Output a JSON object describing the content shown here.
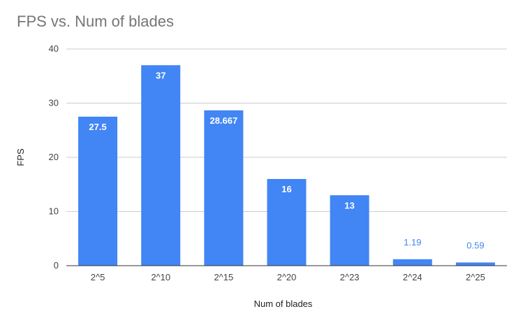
{
  "chart_data": {
    "type": "bar",
    "title": "FPS vs. Num of blades",
    "xlabel": "Num of blades",
    "ylabel": "FPS",
    "categories": [
      "2^5",
      "2^10",
      "2^15",
      "2^20",
      "2^23",
      "2^24",
      "2^25"
    ],
    "values": [
      27.5,
      37,
      28.667,
      16,
      13,
      1.19,
      0.59
    ],
    "data_labels": [
      "27.5",
      "37",
      "28.667",
      "16",
      "13",
      "1.19",
      "0.59"
    ],
    "ylim": [
      0,
      40
    ],
    "yticks": [
      0,
      10,
      20,
      30,
      40
    ],
    "grid": true,
    "legend": "none",
    "bar_color": "#4285f4",
    "label_color_outside": "#4285f4"
  }
}
